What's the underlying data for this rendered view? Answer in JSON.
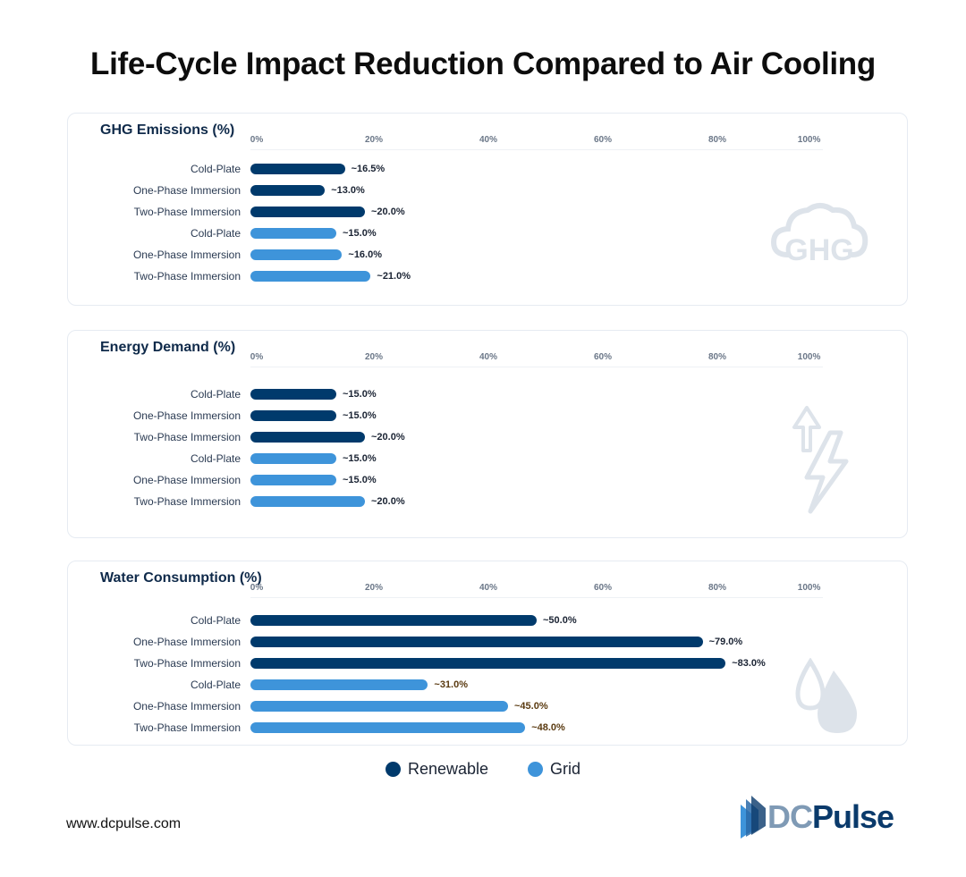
{
  "title": "Life-Cycle Impact Reduction Compared to Air Cooling",
  "colors": {
    "renewable": "#003a6c",
    "grid": "#3e94da",
    "icon": "#dde3ea"
  },
  "chart_data": [
    {
      "type": "bar",
      "orientation": "horizontal",
      "title": "GHG Emissions (%)",
      "icon": "ghg-cloud-icon",
      "xlim": [
        0,
        100
      ],
      "ticks": [
        "0%",
        "20%",
        "40%",
        "60%",
        "80%",
        "100%"
      ],
      "categories": [
        "Cold-Plate",
        "One-Phase Immersion",
        "Two-Phase Immersion",
        "Cold-Plate",
        "One-Phase Immersion",
        "Two-Phase Immersion"
      ],
      "series_of_row": [
        "Renewable",
        "Renewable",
        "Renewable",
        "Grid",
        "Grid",
        "Grid"
      ],
      "values": [
        16.5,
        13.0,
        20.0,
        15.0,
        16.0,
        21.0
      ],
      "labels": [
        "~16.5%",
        "~13.0%",
        "~20.0%",
        "~15.0%",
        "~16.0%",
        "~21.0%"
      ]
    },
    {
      "type": "bar",
      "orientation": "horizontal",
      "title": "Energy Demand (%)",
      "icon": "lightning-bolt-icon",
      "xlim": [
        0,
        100
      ],
      "ticks": [
        "0%",
        "20%",
        "40%",
        "60%",
        "80%",
        "100%"
      ],
      "categories": [
        "Cold-Plate",
        "One-Phase Immersion",
        "Two-Phase Immersion",
        "Cold-Plate",
        "One-Phase Immersion",
        "Two-Phase Immersion"
      ],
      "series_of_row": [
        "Renewable",
        "Renewable",
        "Renewable",
        "Grid",
        "Grid",
        "Grid"
      ],
      "values": [
        15.0,
        15.0,
        20.0,
        15.0,
        15.0,
        20.0
      ],
      "labels": [
        "~15.0%",
        "~15.0%",
        "~20.0%",
        "~15.0%",
        "~15.0%",
        "~20.0%"
      ]
    },
    {
      "type": "bar",
      "orientation": "horizontal",
      "title": "Water Consumption (%)",
      "icon": "water-drops-icon",
      "xlim": [
        0,
        100
      ],
      "ticks": [
        "0%",
        "20%",
        "40%",
        "60%",
        "80%",
        "100%"
      ],
      "categories": [
        "Cold-Plate",
        "One-Phase Immersion",
        "Two-Phase Immersion",
        "Cold-Plate",
        "One-Phase Immersion",
        "Two-Phase Immersion"
      ],
      "series_of_row": [
        "Renewable",
        "Renewable",
        "Renewable",
        "Grid",
        "Grid",
        "Grid"
      ],
      "values": [
        50.0,
        79.0,
        83.0,
        31.0,
        45.0,
        48.0
      ],
      "labels": [
        "~50.0%",
        "~79.0%",
        "~83.0%",
        "~31.0%",
        "~45.0%",
        "~48.0%"
      ],
      "grid_label_color": "#5a3a10"
    }
  ],
  "legend": [
    {
      "name": "Renewable",
      "color": "#003a6c"
    },
    {
      "name": "Grid",
      "color": "#3e94da"
    }
  ],
  "legend_placement": "bottom",
  "footer": {
    "url": "www.dcpulse.com"
  },
  "logo": {
    "part1": "DC",
    "part2": "Pulse"
  }
}
